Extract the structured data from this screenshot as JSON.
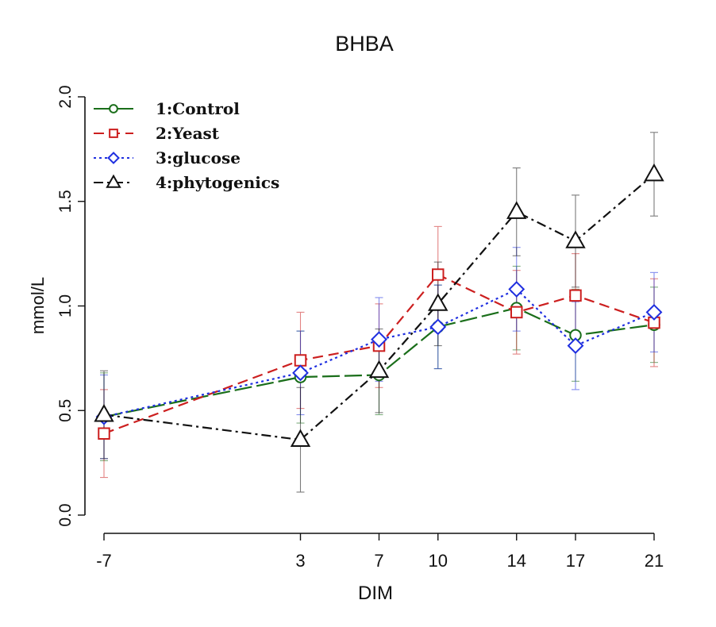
{
  "chart_data": {
    "type": "line",
    "title": "BHBA",
    "xlabel": "DIM",
    "ylabel": "mmol/L",
    "x": [
      -7,
      3,
      7,
      10,
      14,
      17,
      21
    ],
    "x_tick_labels": [
      "-7",
      "3",
      "7",
      "10",
      "14",
      "17",
      "21"
    ],
    "ylim": [
      0.0,
      2.0
    ],
    "y_ticks": [
      0.0,
      0.5,
      1.0,
      1.5,
      2.0
    ],
    "y_tick_labels": [
      "0.0",
      "0.5",
      "1.0",
      "1.5",
      "2.0"
    ],
    "grid": false,
    "legend_position": "top-left",
    "series": [
      {
        "name": "1:Control",
        "color": "#1a6e1a",
        "marker": "circle",
        "line_style": "long-dash",
        "values": [
          0.47,
          0.66,
          0.67,
          0.9,
          0.99,
          0.86,
          0.91
        ],
        "error": [
          0.21,
          0.22,
          0.19,
          0.2,
          0.2,
          0.22,
          0.18
        ]
      },
      {
        "name": "2:Yeast",
        "color": "#cc1f1f",
        "marker": "square",
        "line_style": "dashed",
        "values": [
          0.39,
          0.74,
          0.81,
          1.15,
          0.97,
          1.05,
          0.92
        ],
        "error": [
          0.21,
          0.23,
          0.2,
          0.23,
          0.2,
          0.2,
          0.21
        ]
      },
      {
        "name": "3:glucose",
        "color": "#1f2fe0",
        "marker": "diamond",
        "line_style": "dotted",
        "values": [
          0.47,
          0.68,
          0.84,
          0.9,
          1.08,
          0.81,
          0.97
        ],
        "error": [
          0.2,
          0.2,
          0.2,
          0.2,
          0.2,
          0.21,
          0.19
        ]
      },
      {
        "name": "4:phytogenics",
        "color": "#111111",
        "marker": "triangle",
        "line_style": "dash-dot",
        "values": [
          0.48,
          0.36,
          0.69,
          1.01,
          1.45,
          1.31,
          1.63
        ],
        "error": [
          0.21,
          0.25,
          0.2,
          0.2,
          0.21,
          0.22,
          0.2
        ]
      }
    ]
  }
}
